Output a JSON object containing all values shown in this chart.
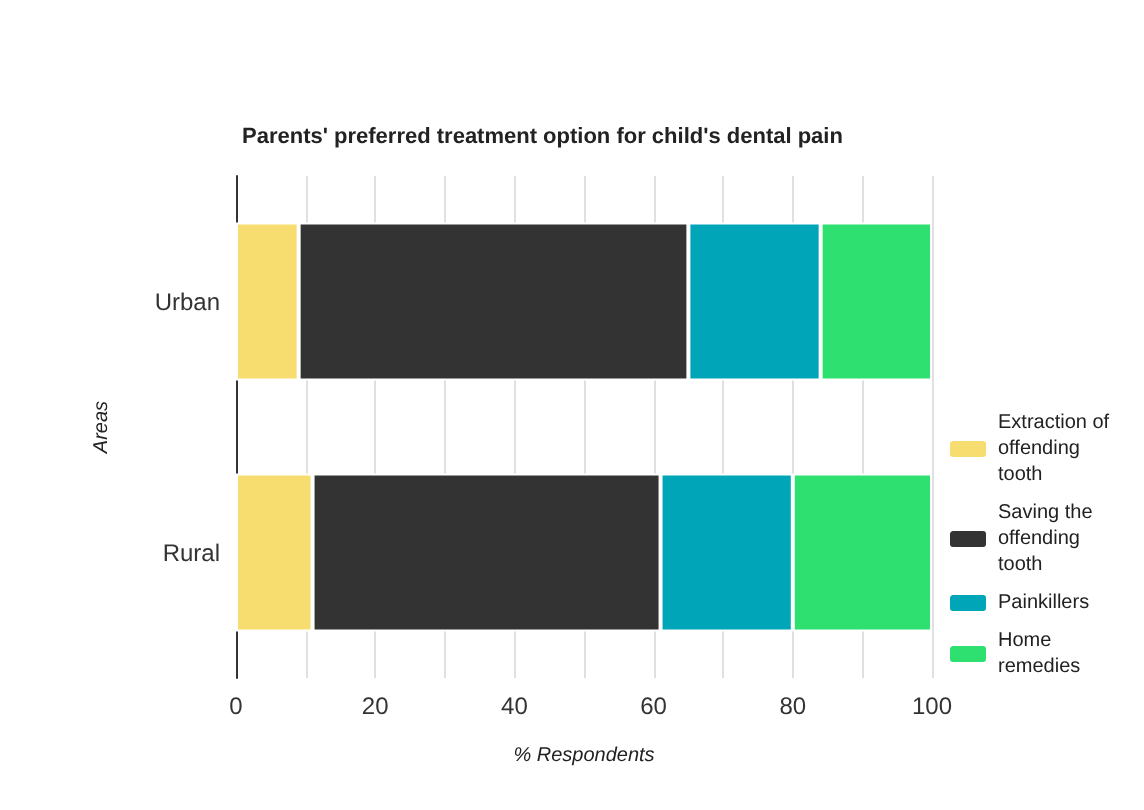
{
  "chart_data": {
    "type": "bar",
    "orientation": "horizontal",
    "stacked": true,
    "title": "Parents' preferred treatment option for child's dental pain",
    "xlabel": "% Respondents",
    "ylabel": "Areas",
    "categories": [
      "Urban",
      "Rural"
    ],
    "series": [
      {
        "name": "Extraction of offending tooth",
        "color": "#f7dc6f",
        "values": [
          9,
          11
        ]
      },
      {
        "name": "Saving the offending tooth",
        "color": "#333333",
        "values": [
          56,
          50
        ]
      },
      {
        "name": "Painkillers",
        "color": "#00a5b8",
        "values": [
          19,
          19
        ]
      },
      {
        "name": "Home remedies",
        "color": "#2ee070",
        "values": [
          16,
          20
        ]
      }
    ],
    "xlim": [
      0,
      100
    ],
    "xticks": [
      0,
      {
        "value": 10,
        "label": null
      },
      20,
      {
        "value": 30,
        "label": null
      },
      40,
      {
        "value": 50,
        "label": null
      },
      60,
      {
        "value": 70,
        "label": null
      },
      80,
      {
        "value": 90,
        "label": null
      },
      100
    ],
    "grid": "x",
    "legend": "right"
  }
}
